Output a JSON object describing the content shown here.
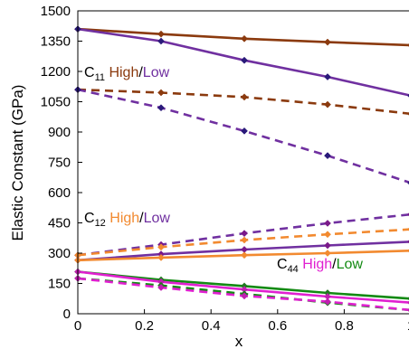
{
  "chart_data": {
    "type": "line",
    "xlabel": "x",
    "ylabel": "Elastic Constant (GPa)",
    "xlim": [
      0,
      1
    ],
    "ylim": [
      0,
      1500
    ],
    "xticks": [
      0,
      0.2,
      0.4,
      0.6,
      0.8,
      1
    ],
    "xtick_labels": [
      "0",
      "0.2",
      "0.4",
      "0.6",
      "0.8",
      "1"
    ],
    "yticks": [
      0,
      150,
      300,
      450,
      600,
      750,
      900,
      1050,
      1200,
      1350,
      1500
    ],
    "ytick_labels": [
      "0",
      "150",
      "300",
      "450",
      "600",
      "750",
      "900",
      "1050",
      "1200",
      "1350",
      "1500"
    ],
    "grid": false,
    "colors": {
      "c11_high": "#8B3A0E",
      "c11_low": "#7030A0",
      "c12_high": "#F28A30",
      "c12_low": "#7030A0",
      "c44_high": "#E020D0",
      "c44_low": "#138A13",
      "marker_c11_low": "#2A1A7A",
      "marker_c12_low": "#7A1A8A",
      "marker_c44_high": "#C020B0",
      "marker_c44_low": "#1E7A1E"
    },
    "series": [
      {
        "key": "c11_high_solid",
        "color": "c11_high",
        "dash": false,
        "x": [
          0,
          0.25,
          0.5,
          0.75,
          1
        ],
        "values": [
          1410,
          1385,
          1362,
          1345,
          1330
        ]
      },
      {
        "key": "c11_high_dashed",
        "color": "c11_high",
        "dash": true,
        "x": [
          0,
          0.25,
          0.5,
          0.75,
          1
        ],
        "values": [
          1110,
          1095,
          1073,
          1036,
          990
        ]
      },
      {
        "key": "c11_low_solid",
        "color": "c11_low",
        "dash": false,
        "marker": "marker_c11_low",
        "x": [
          0,
          0.25,
          0.5,
          0.75,
          1
        ],
        "values": [
          1410,
          1350,
          1255,
          1173,
          1080
        ]
      },
      {
        "key": "c11_low_dashed",
        "color": "c11_low",
        "dash": true,
        "marker": "marker_c11_low",
        "x": [
          0,
          0.25,
          0.5,
          0.75,
          1
        ],
        "values": [
          1110,
          1020,
          905,
          783,
          648
        ]
      },
      {
        "key": "c12_low_dashed",
        "color": "c12_low",
        "dash": true,
        "marker": "marker_c12_low",
        "x": [
          0,
          0.25,
          0.5,
          0.75,
          1
        ],
        "values": [
          290,
          342,
          398,
          448,
          492
        ]
      },
      {
        "key": "c12_high_dashed",
        "color": "c12_high",
        "dash": true,
        "x": [
          0,
          0.25,
          0.5,
          0.75,
          1
        ],
        "values": [
          290,
          330,
          365,
          393,
          418
        ]
      },
      {
        "key": "c12_low_solid",
        "color": "c12_low",
        "dash": false,
        "marker": "marker_c12_low",
        "x": [
          0,
          0.25,
          0.5,
          0.75,
          1
        ],
        "values": [
          265,
          295,
          318,
          338,
          357
        ]
      },
      {
        "key": "c12_high_solid",
        "color": "c12_high",
        "dash": false,
        "x": [
          0,
          0.25,
          0.5,
          0.75,
          1
        ],
        "values": [
          265,
          278,
          290,
          300,
          312
        ]
      },
      {
        "key": "c44_low_solid",
        "color": "c44_low",
        "dash": false,
        "marker": "marker_c44_low",
        "x": [
          0,
          0.25,
          0.5,
          0.75,
          1
        ],
        "values": [
          208,
          168,
          137,
          103,
          75
        ]
      },
      {
        "key": "c44_high_solid",
        "color": "c44_high",
        "dash": false,
        "marker": "marker_c44_high",
        "x": [
          0,
          0.25,
          0.5,
          0.75,
          1
        ],
        "values": [
          208,
          158,
          120,
          85,
          55
        ]
      },
      {
        "key": "c44_low_dashed",
        "color": "c44_low",
        "dash": true,
        "marker": "marker_c44_low",
        "x": [
          0,
          0.25,
          0.5,
          0.75,
          1
        ],
        "values": [
          175,
          140,
          98,
          55,
          18
        ]
      },
      {
        "key": "c44_high_dashed",
        "color": "c44_high",
        "dash": true,
        "marker": "marker_c44_high",
        "x": [
          0,
          0.25,
          0.5,
          0.75,
          1
        ],
        "values": [
          175,
          130,
          88,
          60,
          18
        ]
      }
    ],
    "annotations": [
      {
        "key": "c11",
        "letter": "C",
        "sub": "11",
        "high": "High",
        "slash": "/",
        "low": "Low",
        "high_color": "c11_high",
        "low_color": "c11_low"
      },
      {
        "key": "c12",
        "letter": "C",
        "sub": "12",
        "high": "High",
        "slash": "/",
        "low": "Low",
        "high_color": "c12_high",
        "low_color": "c12_low"
      },
      {
        "key": "c44",
        "letter": "C",
        "sub": "44",
        "high": "High",
        "slash": "/",
        "low": "Low",
        "high_color": "c44_high",
        "low_color": "c44_low"
      }
    ]
  }
}
